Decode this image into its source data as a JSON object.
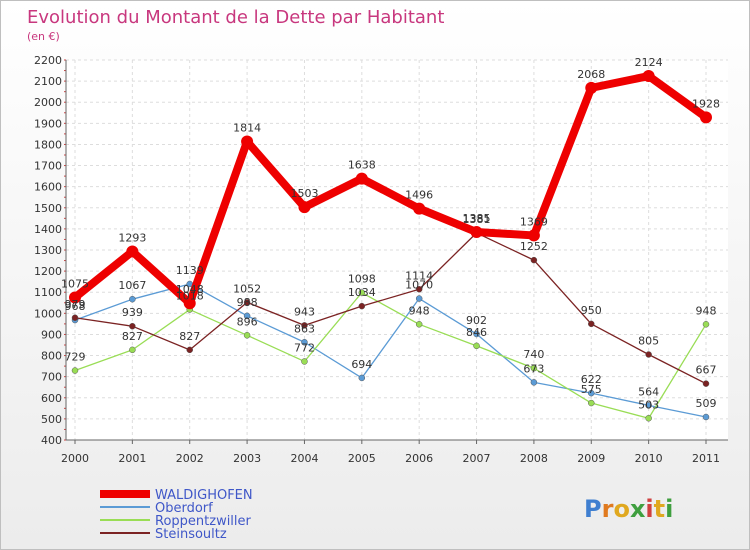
{
  "title": "Evolution du Montant de la Dette par Habitant",
  "subtitle": "(en €)",
  "logo": "Proxiti",
  "chart_data": {
    "type": "line",
    "x": [
      2000,
      2001,
      2002,
      2003,
      2004,
      2005,
      2006,
      2007,
      2008,
      2009,
      2010,
      2011
    ],
    "ylim": [
      400,
      2200
    ],
    "yticks": [
      400,
      500,
      600,
      700,
      800,
      900,
      1000,
      1100,
      1200,
      1300,
      1400,
      1500,
      1600,
      1700,
      1800,
      1900,
      2000,
      2100,
      2200
    ],
    "grid": true,
    "legend_position": "bottom-left",
    "series": [
      {
        "name": "WALDIGHOFEN",
        "color": "#ee0000",
        "values": [
          1075,
          1293,
          1048,
          1814,
          1503,
          1638,
          1496,
          1385,
          1369,
          2068,
          2124,
          1928
        ]
      },
      {
        "name": "Oberdorf",
        "color": "#5b9bd5",
        "values": [
          968,
          1067,
          1139,
          988,
          863,
          694,
          1070,
          902,
          673,
          622,
          564,
          509
        ]
      },
      {
        "name": "Roppentzwiller",
        "color": "#99dd55",
        "values": [
          729,
          827,
          1018,
          896,
          772,
          1098,
          948,
          846,
          740,
          575,
          503,
          948
        ]
      },
      {
        "name": "Steinsoultz",
        "color": "#7b2323",
        "values": [
          979,
          939,
          827,
          1052,
          943,
          1034,
          1114,
          1381,
          1252,
          950,
          805,
          667
        ]
      }
    ]
  }
}
